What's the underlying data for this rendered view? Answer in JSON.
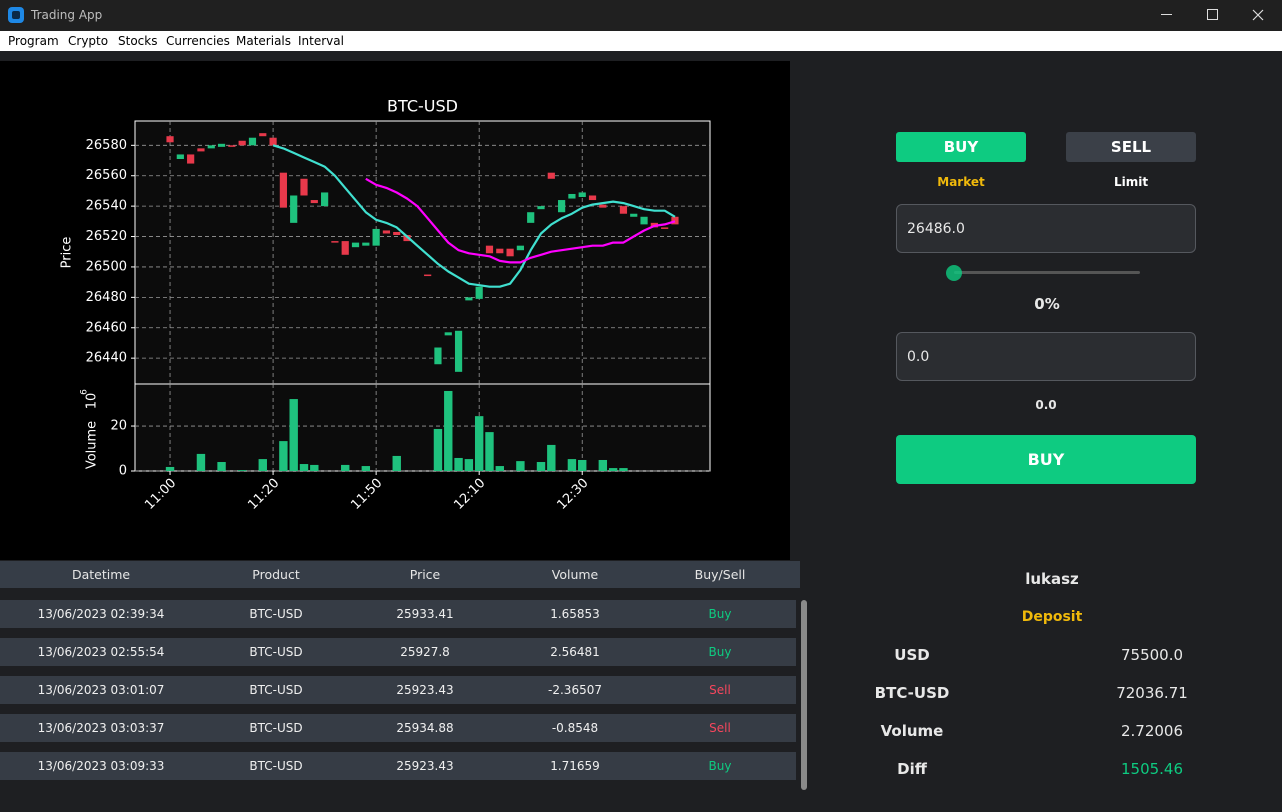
{
  "window": {
    "title": "Trading App"
  },
  "menu": [
    "Program",
    "Crypto",
    "Stocks",
    "Currencies",
    "Materials",
    "Interval"
  ],
  "chart": {
    "type": "candlestick",
    "title": "BTC-USD",
    "y_label": "Price",
    "volume_label": "Volume",
    "volume_scale": {
      "base": "10",
      "exponent": "6"
    },
    "xlim": [
      -3.4,
      52.4
    ],
    "xticks": [
      {
        "value": 0,
        "label": "11:00"
      },
      {
        "value": 10,
        "label": "11:20"
      },
      {
        "value": 20,
        "label": "11:50"
      },
      {
        "value": 30,
        "label": "12:10"
      },
      {
        "value": 40,
        "label": "12:30"
      }
    ],
    "ylim": [
      26423,
      26596
    ],
    "yticks": [
      26440,
      26460,
      26480,
      26500,
      26520,
      26540,
      26560,
      26580
    ],
    "volume_ylim": [
      0,
      38.7
    ],
    "volume_yticks": [
      0,
      20
    ],
    "up_color": "#1fc27e",
    "down_color": "#e8394b",
    "volume_color": "#1fc27e",
    "grid": true,
    "open": [
      26586,
      26571,
      26574,
      26578,
      26578,
      26579,
      26580,
      26583,
      26580,
      26588,
      26585,
      26562,
      26529,
      26558,
      26544,
      26540,
      26517,
      26517,
      26513,
      26514,
      26514,
      26524,
      26523,
      26521,
      null,
      26495,
      26436,
      26455,
      26431,
      26478,
      26479,
      26514,
      26512,
      26512,
      26511,
      26529,
      26538,
      26562,
      26536,
      26545,
      26546,
      26547,
      26541,
      null,
      26540,
      26533,
      26528,
      26529,
      26526,
      26533
    ],
    "close": [
      26582,
      26574,
      26568,
      26576,
      26580,
      26581,
      26579,
      26580,
      26585,
      26586,
      26580,
      26539,
      26547,
      26547,
      26542,
      26549,
      26516,
      26508,
      26516,
      26516,
      26525,
      26522,
      26521,
      26517,
      null,
      26494,
      26447,
      26457,
      26458,
      26480,
      26487,
      26509,
      26509,
      26507,
      26514,
      26536,
      26540,
      26558,
      26544,
      26548,
      26549,
      26544,
      26539,
      null,
      26535,
      26535,
      26533,
      26526,
      26525,
      26528
    ],
    "volume": [
      1.8,
      0,
      0,
      7.6,
      0,
      4,
      0,
      0.4,
      0,
      5.3,
      0,
      13.3,
      32,
      3.1,
      2.7,
      0,
      0,
      2.7,
      0,
      2.2,
      0,
      0,
      6.7,
      0,
      0,
      0,
      18.7,
      35.6,
      5.8,
      5.3,
      24.4,
      17.3,
      2.2,
      0,
      4.4,
      0,
      4,
      11.6,
      0,
      5.3,
      4.9,
      0,
      4.9,
      1.3,
      1.3,
      0,
      0,
      0,
      0,
      0
    ],
    "series": [
      {
        "color": "#40e0d0",
        "values": [
          null,
          null,
          null,
          null,
          null,
          null,
          null,
          null,
          null,
          null,
          26580,
          26578,
          26575,
          26572,
          26569,
          26566,
          26560,
          26552,
          26544,
          26536,
          26531,
          26529,
          26526,
          26520,
          26514,
          26508,
          26502,
          26497,
          26493,
          26489,
          26488,
          26487,
          26487,
          26489,
          26498,
          26511,
          26522,
          26528,
          26532,
          26535,
          26539,
          26541,
          26542,
          26543,
          26542,
          26540,
          26538,
          26537,
          26537,
          26533
        ]
      },
      {
        "color": "#ff00ff",
        "values": [
          null,
          null,
          null,
          null,
          null,
          null,
          null,
          null,
          null,
          null,
          null,
          null,
          null,
          null,
          null,
          null,
          null,
          null,
          null,
          26558,
          26554,
          26552,
          26549,
          26545,
          26540,
          26532,
          26524,
          26516,
          26511,
          26509,
          26508,
          26507,
          26504,
          26503,
          26503,
          26506,
          26508,
          26510,
          26511,
          26512,
          26513,
          26514,
          26514,
          26516,
          26516,
          26520,
          26524,
          26527,
          26528,
          26530
        ]
      }
    ]
  },
  "table": {
    "columns": [
      "Datetime",
      "Product",
      "Price",
      "Volume",
      "Buy/Sell"
    ],
    "rows": [
      [
        "13/06/2023 02:39:34",
        "BTC-USD",
        "25933.41",
        "1.65853",
        "Buy"
      ],
      [
        "13/06/2023 02:55:54",
        "BTC-USD",
        "25927.8",
        "2.56481",
        "Buy"
      ],
      [
        "13/06/2023 03:01:07",
        "BTC-USD",
        "25923.43",
        "-2.36507",
        "Sell"
      ],
      [
        "13/06/2023 03:03:37",
        "BTC-USD",
        "25934.88",
        "-0.8548",
        "Sell"
      ],
      [
        "13/06/2023 03:09:33",
        "BTC-USD",
        "25923.43",
        "1.71659",
        "Buy"
      ]
    ]
  },
  "order": {
    "tabs": [
      "BUY",
      "SELL"
    ],
    "types": [
      "Market",
      "Limit"
    ],
    "price": "26486.0",
    "percent": "0%",
    "amount": "0.0",
    "total": "0.0",
    "submit": "BUY"
  },
  "account": {
    "user": "lukasz",
    "section": "Deposit",
    "rows": [
      {
        "label": "USD",
        "value": "75500.0"
      },
      {
        "label": "BTC-USD",
        "value": "72036.71"
      },
      {
        "label": "Volume",
        "value": "2.72006"
      },
      {
        "label": "Diff",
        "value": "1505.46"
      }
    ]
  }
}
